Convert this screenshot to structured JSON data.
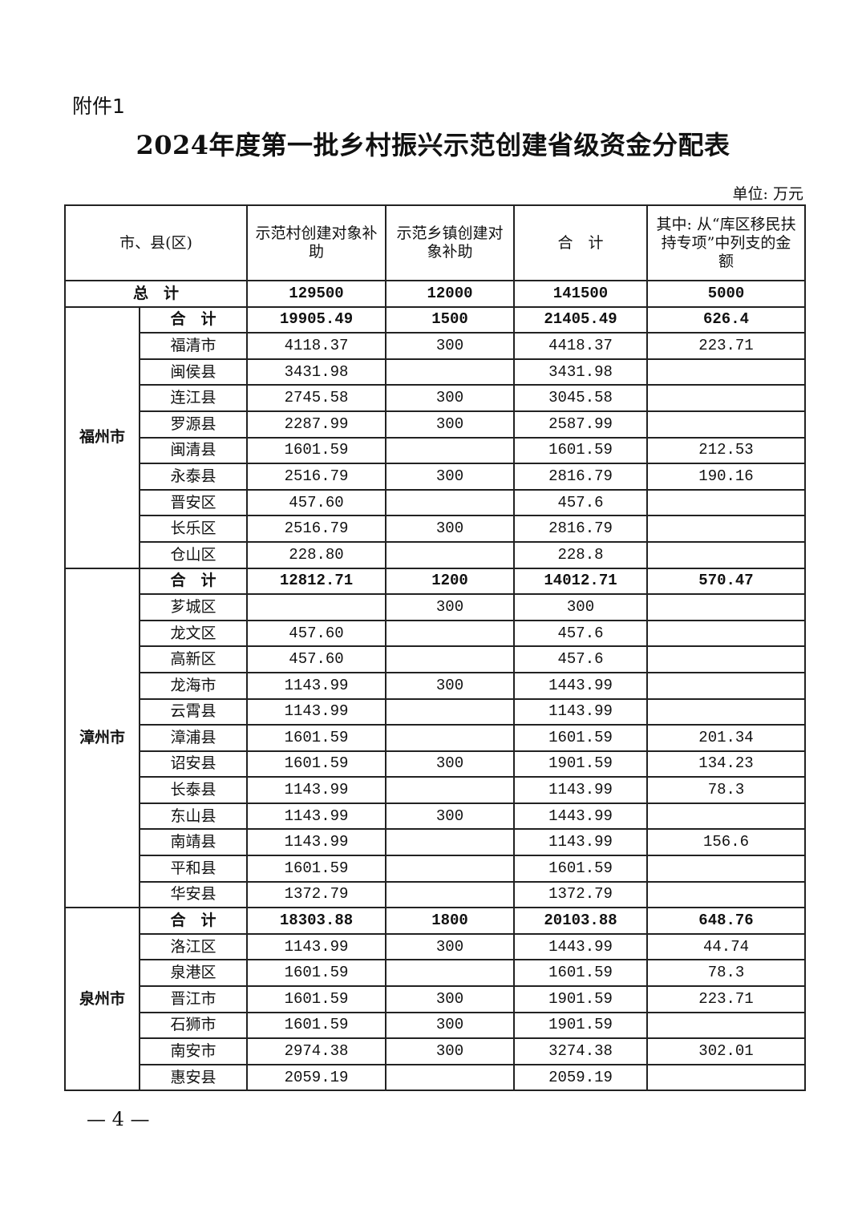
{
  "attachment_label": "附件1",
  "title": "2024年度第一批乡村振兴示范创建省级资金分配表",
  "unit": "单位: 万元",
  "table": {
    "headers": [
      "市、县(区)",
      "示范村创建对象补助",
      "示范乡镇创建对象补助",
      "合　计",
      "其中: 从“库区移民扶持专项”中列支的金额"
    ],
    "total_row": {
      "label": "总　计",
      "village": "129500",
      "town": "12000",
      "sum": "141500",
      "reservoir": "5000"
    },
    "groups": [
      {
        "city": "福州市",
        "rows": [
          {
            "name": "合　计",
            "village": "19905.49",
            "town": "1500",
            "sum": "21405.49",
            "reservoir": "626.4"
          },
          {
            "name": "福清市",
            "village": "4118.37",
            "town": "300",
            "sum": "4418.37",
            "reservoir": "223.71"
          },
          {
            "name": "闽侯县",
            "village": "3431.98",
            "town": "",
            "sum": "3431.98",
            "reservoir": ""
          },
          {
            "name": "连江县",
            "village": "2745.58",
            "town": "300",
            "sum": "3045.58",
            "reservoir": ""
          },
          {
            "name": "罗源县",
            "village": "2287.99",
            "town": "300",
            "sum": "2587.99",
            "reservoir": ""
          },
          {
            "name": "闽清县",
            "village": "1601.59",
            "town": "",
            "sum": "1601.59",
            "reservoir": "212.53"
          },
          {
            "name": "永泰县",
            "village": "2516.79",
            "town": "300",
            "sum": "2816.79",
            "reservoir": "190.16"
          },
          {
            "name": "晋安区",
            "village": "457.60",
            "town": "",
            "sum": "457.6",
            "reservoir": ""
          },
          {
            "name": "长乐区",
            "village": "2516.79",
            "town": "300",
            "sum": "2816.79",
            "reservoir": ""
          },
          {
            "name": "仓山区",
            "village": "228.80",
            "town": "",
            "sum": "228.8",
            "reservoir": ""
          }
        ]
      },
      {
        "city": "漳州市",
        "rows": [
          {
            "name": "合　计",
            "village": "12812.71",
            "town": "1200",
            "sum": "14012.71",
            "reservoir": "570.47"
          },
          {
            "name": "芗城区",
            "village": "",
            "town": "300",
            "sum": "300",
            "reservoir": ""
          },
          {
            "name": "龙文区",
            "village": "457.60",
            "town": "",
            "sum": "457.6",
            "reservoir": ""
          },
          {
            "name": "高新区",
            "village": "457.60",
            "town": "",
            "sum": "457.6",
            "reservoir": ""
          },
          {
            "name": "龙海市",
            "village": "1143.99",
            "town": "300",
            "sum": "1443.99",
            "reservoir": ""
          },
          {
            "name": "云霄县",
            "village": "1143.99",
            "town": "",
            "sum": "1143.99",
            "reservoir": ""
          },
          {
            "name": "漳浦县",
            "village": "1601.59",
            "town": "",
            "sum": "1601.59",
            "reservoir": "201.34"
          },
          {
            "name": "诏安县",
            "village": "1601.59",
            "town": "300",
            "sum": "1901.59",
            "reservoir": "134.23"
          },
          {
            "name": "长泰县",
            "village": "1143.99",
            "town": "",
            "sum": "1143.99",
            "reservoir": "78.3"
          },
          {
            "name": "东山县",
            "village": "1143.99",
            "town": "300",
            "sum": "1443.99",
            "reservoir": ""
          },
          {
            "name": "南靖县",
            "village": "1143.99",
            "town": "",
            "sum": "1143.99",
            "reservoir": "156.6"
          },
          {
            "name": "平和县",
            "village": "1601.59",
            "town": "",
            "sum": "1601.59",
            "reservoir": ""
          },
          {
            "name": "华安县",
            "village": "1372.79",
            "town": "",
            "sum": "1372.79",
            "reservoir": ""
          }
        ]
      },
      {
        "city": "泉州市",
        "rows": [
          {
            "name": "合　计",
            "village": "18303.88",
            "town": "1800",
            "sum": "20103.88",
            "reservoir": "648.76"
          },
          {
            "name": "洛江区",
            "village": "1143.99",
            "town": "300",
            "sum": "1443.99",
            "reservoir": "44.74"
          },
          {
            "name": "泉港区",
            "village": "1601.59",
            "town": "",
            "sum": "1601.59",
            "reservoir": "78.3"
          },
          {
            "name": "晋江市",
            "village": "1601.59",
            "town": "300",
            "sum": "1901.59",
            "reservoir": "223.71"
          },
          {
            "name": "石狮市",
            "village": "1601.59",
            "town": "300",
            "sum": "1901.59",
            "reservoir": ""
          },
          {
            "name": "南安市",
            "village": "2974.38",
            "town": "300",
            "sum": "3274.38",
            "reservoir": "302.01"
          },
          {
            "name": "惠安县",
            "village": "2059.19",
            "town": "",
            "sum": "2059.19",
            "reservoir": ""
          }
        ]
      }
    ]
  },
  "page_number": "— 4 —"
}
